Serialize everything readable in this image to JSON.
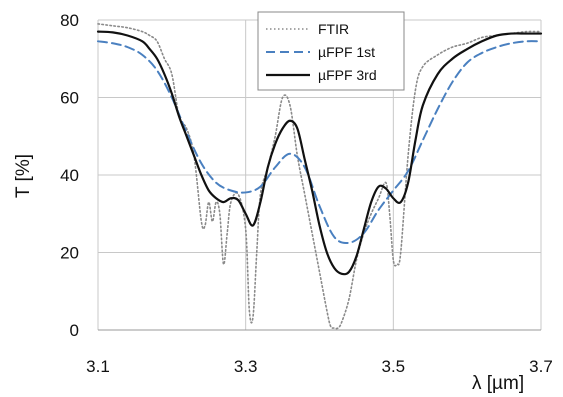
{
  "chart_data": {
    "type": "line",
    "title": "",
    "xlabel": "λ [µm]",
    "ylabel": "T [%]",
    "xlim": [
      3.1,
      3.7
    ],
    "ylim": [
      0,
      80
    ],
    "xticks": [
      "3.1",
      "3.3",
      "3.5",
      "3.7"
    ],
    "xtick_values": [
      3.1,
      3.3,
      3.5,
      3.7
    ],
    "yticks": [
      "0",
      "20",
      "40",
      "60",
      "80"
    ],
    "ytick_values": [
      0,
      20,
      40,
      60,
      80
    ],
    "grid": true,
    "legend_position": "top-center",
    "series": [
      {
        "name": "FTIR",
        "color": "#8a8a8a",
        "style": "dotted",
        "x": [
          3.1,
          3.12,
          3.14,
          3.16,
          3.17,
          3.18,
          3.19,
          3.2,
          3.21,
          3.22,
          3.23,
          3.24,
          3.245,
          3.25,
          3.255,
          3.26,
          3.265,
          3.27,
          3.275,
          3.28,
          3.29,
          3.3,
          3.305,
          3.31,
          3.315,
          3.32,
          3.33,
          3.34,
          3.35,
          3.36,
          3.37,
          3.38,
          3.39,
          3.4,
          3.41,
          3.415,
          3.42,
          3.425,
          3.43,
          3.44,
          3.45,
          3.46,
          3.47,
          3.48,
          3.49,
          3.495,
          3.5,
          3.505,
          3.51,
          3.52,
          3.53,
          3.54,
          3.56,
          3.58,
          3.6,
          3.62,
          3.64,
          3.66,
          3.68,
          3.7
        ],
        "y": [
          79.0,
          78.5,
          78.0,
          77.0,
          76.0,
          74.5,
          70.0,
          66.0,
          55.0,
          52.0,
          45.0,
          28.0,
          27.0,
          33.0,
          28.0,
          33.0,
          30.0,
          17.0,
          25.0,
          33.0,
          35.0,
          26.0,
          5.0,
          3.5,
          20.0,
          35.0,
          42.0,
          50.0,
          60.0,
          58.0,
          45.0,
          35.0,
          25.0,
          15.0,
          5.0,
          1.0,
          0.5,
          0.5,
          2.0,
          8.0,
          18.0,
          25.0,
          30.0,
          34.0,
          38.0,
          30.0,
          18.0,
          17.0,
          20.0,
          45.0,
          62.0,
          68.0,
          71.0,
          73.0,
          74.0,
          75.5,
          76.0,
          76.5,
          77.0,
          77.0
        ]
      },
      {
        "name": "µFPF 1st",
        "color": "#4a80c0",
        "style": "dashed",
        "x": [
          3.1,
          3.12,
          3.14,
          3.16,
          3.18,
          3.2,
          3.22,
          3.24,
          3.26,
          3.28,
          3.3,
          3.32,
          3.34,
          3.36,
          3.38,
          3.4,
          3.42,
          3.44,
          3.46,
          3.48,
          3.5,
          3.52,
          3.54,
          3.56,
          3.58,
          3.6,
          3.62,
          3.64,
          3.66,
          3.68,
          3.7
        ],
        "y": [
          74.5,
          74.0,
          73.0,
          71.0,
          67.0,
          60.0,
          51.0,
          43.0,
          38.0,
          36.0,
          35.5,
          37.0,
          42.0,
          45.5,
          42.0,
          32.0,
          24.0,
          22.5,
          25.0,
          31.0,
          36.0,
          41.0,
          49.0,
          57.0,
          64.0,
          69.0,
          71.5,
          73.0,
          74.0,
          74.5,
          74.5
        ]
      },
      {
        "name": "µFPF 3rd",
        "color": "#111111",
        "style": "solid",
        "x": [
          3.1,
          3.12,
          3.14,
          3.16,
          3.17,
          3.18,
          3.19,
          3.2,
          3.21,
          3.22,
          3.23,
          3.24,
          3.25,
          3.26,
          3.27,
          3.28,
          3.29,
          3.3,
          3.31,
          3.32,
          3.33,
          3.34,
          3.35,
          3.36,
          3.37,
          3.38,
          3.39,
          3.4,
          3.41,
          3.42,
          3.43,
          3.44,
          3.45,
          3.46,
          3.47,
          3.48,
          3.49,
          3.5,
          3.51,
          3.52,
          3.53,
          3.54,
          3.56,
          3.58,
          3.6,
          3.62,
          3.64,
          3.66,
          3.68,
          3.7
        ],
        "y": [
          77.0,
          76.8,
          76.0,
          74.5,
          72.5,
          70.0,
          66.0,
          61.0,
          55.0,
          50.0,
          45.0,
          40.0,
          36.0,
          34.0,
          33.0,
          34.0,
          33.5,
          30.0,
          27.0,
          33.0,
          42.0,
          48.0,
          52.0,
          54.0,
          52.0,
          44.0,
          36.0,
          27.0,
          20.0,
          16.0,
          14.5,
          15.0,
          19.0,
          26.0,
          33.0,
          37.0,
          36.5,
          34.0,
          33.0,
          38.0,
          49.0,
          58.0,
          66.0,
          70.0,
          72.5,
          74.5,
          76.0,
          76.5,
          76.5,
          76.5
        ]
      }
    ]
  }
}
